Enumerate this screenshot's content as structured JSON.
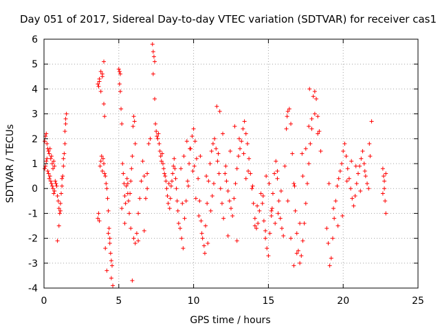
{
  "chart_data": {
    "type": "scatter",
    "title": "Day 051 of 2017, Sidereal Day-to-day VTEC variation (SDTVAR) for receiver cas1",
    "xlabel": "GPS time / hours",
    "ylabel": "SDTVAR / TECUs",
    "xlim": [
      0,
      25
    ],
    "ylim": [
      -4,
      6
    ],
    "grid": true,
    "marker": "plus",
    "color": "#ff0000",
    "x_ticks": [
      "0",
      "5",
      "10",
      "15",
      "20",
      "25"
    ],
    "x_tick_values": [
      0,
      5,
      10,
      15,
      20,
      25
    ],
    "y_ticks": [
      "-4",
      "-3",
      "-2",
      "-1",
      "0",
      "1",
      "2",
      "3",
      "4",
      "5",
      "6"
    ],
    "y_tick_values": [
      -4,
      -3,
      -2,
      -1,
      0,
      1,
      2,
      3,
      4,
      5,
      6
    ],
    "series": [
      {
        "name": "cas1",
        "x": [
          0.05,
          0.1,
          0.15,
          0.2,
          0.25,
          0.3,
          0.35,
          0.4,
          0.45,
          0.5,
          0.55,
          0.6,
          0.65,
          0.7,
          0.05,
          0.1,
          0.15,
          0.2,
          0.25,
          0.3,
          0.35,
          0.4,
          0.45,
          0.5,
          0.55,
          0.6,
          0.65,
          0.7,
          0.75,
          0.8,
          0.85,
          0.9,
          0.95,
          1.0,
          1.05,
          1.1,
          1.15,
          1.2,
          1.25,
          1.3,
          1.35,
          1.4,
          1.45,
          0.9,
          1.0,
          1.1,
          1.2,
          1.3,
          1.4,
          1.45,
          1.5,
          3.6,
          3.65,
          3.7,
          3.75,
          3.8,
          3.85,
          3.9,
          3.95,
          4.0,
          4.05,
          3.65,
          3.7,
          3.8,
          3.9,
          4.0,
          3.6,
          3.7,
          3.8,
          3.9,
          4.0,
          4.05,
          4.1,
          4.15,
          4.2,
          4.25,
          4.3,
          4.35,
          4.4,
          4.45,
          4.5,
          4.55,
          4.1,
          4.2,
          4.3,
          4.4,
          4.5,
          4.6,
          5.0,
          5.05,
          5.1,
          5.15,
          5.05,
          5.1,
          5.2,
          5.25,
          5.3,
          5.35,
          5.4,
          5.45,
          5.5,
          5.55,
          5.6,
          5.65,
          5.7,
          5.75,
          5.8,
          5.85,
          5.9,
          5.95,
          6.0,
          6.05,
          6.1,
          5.2,
          5.4,
          5.6,
          5.8,
          6.0,
          6.1,
          6.2,
          6.3,
          6.4,
          6.5,
          6.6,
          6.7,
          6.8,
          6.9,
          7.0,
          7.1,
          5.9,
          6.3,
          6.7,
          6.9,
          7.25,
          7.3,
          7.35,
          7.4,
          7.3,
          7.4,
          7.45,
          7.5,
          7.55,
          7.6,
          7.65,
          7.7,
          7.75,
          7.8,
          7.85,
          7.9,
          7.95,
          8.0,
          8.05,
          8.1,
          8.15,
          8.2,
          8.25,
          8.3,
          8.35,
          8.4,
          8.45,
          8.5,
          8.55,
          8.6,
          8.65,
          8.7,
          8.75,
          8.8,
          8.85,
          8.9,
          8.95,
          9.0,
          9.1,
          9.2,
          9.3,
          9.4,
          9.5,
          9.6,
          9.7,
          9.8,
          9.9,
          10.0,
          10.1,
          10.2,
          10.3,
          10.4,
          10.5,
          10.6,
          10.7,
          10.8,
          10.9,
          11.0,
          11.1,
          11.2,
          11.3,
          11.4,
          11.5,
          11.6,
          11.7,
          11.8,
          11.9,
          12.0,
          9.15,
          9.35,
          9.55,
          9.75,
          9.95,
          10.15,
          10.35,
          10.55,
          10.75,
          10.95,
          11.15,
          11.35,
          11.55,
          11.75,
          11.95,
          9.25,
          9.65,
          10.05,
          10.45,
          10.85,
          11.25,
          11.65,
          12.1,
          12.2,
          12.3,
          12.4,
          12.5,
          12.6,
          12.7,
          12.8,
          12.9,
          13.0,
          13.1,
          13.2,
          13.3,
          13.4,
          13.5,
          13.6,
          13.7,
          13.8,
          13.9,
          14.0,
          14.1,
          14.2,
          14.3,
          14.4,
          14.5,
          12.15,
          12.45,
          12.75,
          13.05,
          13.35,
          13.65,
          13.95,
          14.25,
          12.3,
          12.9,
          13.5,
          14.1,
          14.6,
          14.7,
          14.8,
          14.9,
          15.0,
          15.1,
          15.2,
          15.3,
          15.4,
          15.5,
          15.6,
          15.7,
          15.8,
          15.9,
          16.0,
          14.65,
          14.85,
          15.05,
          15.25,
          15.45,
          15.65,
          15.85,
          14.8,
          15.2,
          15.6,
          16.1,
          16.2,
          16.3,
          16.4,
          16.5,
          16.6,
          16.7,
          16.8,
          16.9,
          17.0,
          17.1,
          17.2,
          17.3,
          17.4,
          17.5,
          17.6,
          17.7,
          17.8,
          17.9,
          18.0,
          18.1,
          18.2,
          18.3,
          18.4,
          18.5,
          16.3,
          16.5,
          16.7,
          16.9,
          17.1,
          17.3,
          17.5,
          17.7,
          17.9,
          18.1,
          18.3,
          16.25,
          16.75,
          17.25,
          17.75,
          18.9,
          19.0,
          19.1,
          19.2,
          19.3,
          19.4,
          19.5,
          19.6,
          19.7,
          19.8,
          19.9,
          20.0,
          20.1,
          20.2,
          20.3,
          20.4,
          20.5,
          20.6,
          20.7,
          20.8,
          20.9,
          21.0,
          21.1,
          21.2,
          21.3,
          21.4,
          21.5,
          21.6,
          21.7,
          21.8,
          21.9,
          19.05,
          19.35,
          19.65,
          19.95,
          20.25,
          20.55,
          20.85,
          21.15,
          21.45,
          21.75,
          22.65,
          22.7,
          22.75,
          22.8,
          22.85,
          22.65,
          22.75,
          22.85
        ],
        "y": [
          1.9,
          2.1,
          2.2,
          1.8,
          1.6,
          1.5,
          1.4,
          1.6,
          1.2,
          1.3,
          1.0,
          0.8,
          1.1,
          0.9,
          0.8,
          0.9,
          1.1,
          1.2,
          0.7,
          0.6,
          0.4,
          0.5,
          0.3,
          0.2,
          0.1,
          0.0,
          -0.2,
          -0.1,
          0.3,
          0.2,
          0.1,
          -0.3,
          -0.5,
          -0.8,
          -1.0,
          -0.6,
          -0.2,
          0.1,
          0.5,
          0.9,
          1.4,
          2.3,
          2.8,
          -2.1,
          -1.5,
          -0.9,
          0.4,
          1.2,
          1.8,
          2.6,
          3.0,
          -1.2,
          -1.0,
          -1.3,
          0.9,
          1.1,
          1.3,
          0.7,
          1.2,
          1.0,
          0.6,
          4.1,
          4.4,
          4.7,
          4.5,
          5.1,
          4.2,
          4.3,
          3.9,
          4.6,
          3.4,
          2.9,
          0.5,
          0.2,
          0.0,
          -0.4,
          -0.9,
          -1.6,
          -2.2,
          -2.6,
          -2.9,
          -3.1,
          -2.4,
          -3.3,
          -1.8,
          -2.0,
          -3.6,
          -3.9,
          4.8,
          4.7,
          4.6,
          3.2,
          4.2,
          3.9,
          2.6,
          1.0,
          0.6,
          0.2,
          -0.3,
          -0.6,
          0.1,
          0.4,
          0.2,
          -0.5,
          -1.0,
          -0.2,
          0.3,
          0.8,
          1.3,
          2.5,
          2.9,
          2.7,
          1.8,
          -0.8,
          -1.4,
          -0.2,
          -1.6,
          -2.0,
          -2.2,
          -1.8,
          -1.0,
          -0.4,
          0.3,
          1.1,
          0.5,
          -0.4,
          0.0,
          1.8,
          2.0,
          -3.7,
          -2.1,
          -1.7,
          0.6,
          5.8,
          5.5,
          5.3,
          5.1,
          4.6,
          3.6,
          2.6,
          2.3,
          2.1,
          2.0,
          2.2,
          1.8,
          1.5,
          1.3,
          1.1,
          1.4,
          1.0,
          0.8,
          0.6,
          0.5,
          0.3,
          0.0,
          -0.3,
          -0.6,
          0.2,
          -0.8,
          -0.4,
          0.1,
          0.3,
          0.6,
          0.9,
          1.2,
          0.8,
          0.4,
          0.0,
          -0.5,
          -0.9,
          -1.4,
          -1.6,
          -2.0,
          -2.4,
          -1.2,
          -0.5,
          0.3,
          1.0,
          1.6,
          2.1,
          2.4,
          1.9,
          1.2,
          0.4,
          -0.5,
          -1.3,
          -2.0,
          -2.3,
          -1.5,
          -0.6,
          0.3,
          1.0,
          1.5,
          1.8,
          2.0,
          1.6,
          1.1,
          0.6,
          0.0,
          -0.6,
          -1.2,
          0.8,
          1.3,
          1.9,
          1.6,
          0.7,
          -0.4,
          -1.1,
          -1.8,
          -2.6,
          -2.2,
          -0.9,
          0.2,
          3.3,
          3.1,
          2.2,
          -0.6,
          0.1,
          0.9,
          1.3,
          0.5,
          -0.3,
          1.4,
          0.6,
          0.3,
          -0.1,
          -0.5,
          -0.8,
          -1.1,
          -0.4,
          0.2,
          0.8,
          1.3,
          1.6,
          1.9,
          2.4,
          2.7,
          2.2,
          1.8,
          1.2,
          0.6,
          0.0,
          -0.6,
          -1.2,
          -1.6,
          -1.4,
          -0.9,
          -0.2,
          0.9,
          1.5,
          2.5,
          2.0,
          1.4,
          0.7,
          0.1,
          -0.7,
          -1.9,
          -2.1,
          0.4,
          -1.5,
          -0.6,
          -1.3,
          -2.0,
          -2.4,
          -2.7,
          -1.8,
          -0.9,
          -0.2,
          0.6,
          1.1,
          0.4,
          -0.5,
          -1.2,
          -1.6,
          -1.9,
          -0.3,
          0.5,
          0.2,
          -0.8,
          -1.4,
          -1.0,
          -0.1,
          -1.7,
          -1.1,
          0.7,
          0.9,
          2.4,
          3.1,
          3.2,
          2.6,
          1.4,
          0.2,
          -0.9,
          -1.8,
          -2.5,
          -3.0,
          -2.7,
          -2.1,
          -1.4,
          -0.6,
          0.2,
          1.0,
          1.8,
          2.4,
          3.7,
          3.9,
          3.6,
          2.9,
          2.3,
          1.5,
          -0.5,
          -2.0,
          -3.1,
          -2.6,
          -1.4,
          0.5,
          1.6,
          2.5,
          2.8,
          3.0,
          2.2,
          2.9,
          0.1,
          1.4,
          4.0,
          -1.6,
          -2.2,
          -3.1,
          -2.8,
          -2.0,
          -1.2,
          -0.5,
          0.1,
          0.4,
          0.7,
          1.0,
          1.5,
          1.8,
          1.3,
          0.8,
          0.4,
          0.0,
          -0.4,
          -0.7,
          -0.3,
          0.2,
          0.6,
          0.9,
          1.2,
          1.5,
          1.0,
          0.5,
          0.2,
          0.0,
          1.3,
          2.7,
          0.2,
          -0.8,
          -1.5,
          -1.1,
          0.3,
          1.1,
          0.9,
          -0.1,
          0.7,
          1.8,
          0.8,
          0.5,
          0.0,
          -0.5,
          -1.0,
          -0.2,
          0.3,
          0.6
        ]
      }
    ]
  }
}
